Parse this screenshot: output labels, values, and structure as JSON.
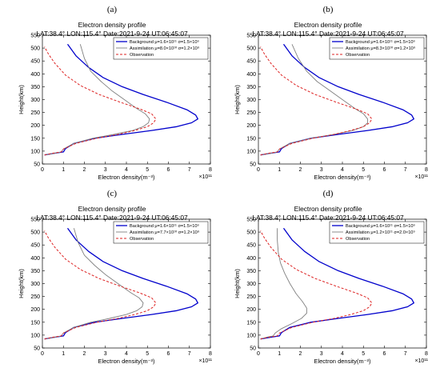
{
  "chart_data": [
    {
      "panel": "(a)",
      "type": "line",
      "title": "Electron density profile",
      "subtitle": "LAT:38.4° LON:115.4° Date:2021-9-24 UT:06:45:07",
      "xlabel": "Electron density(m⁻³)",
      "ylabel": "Height(km)",
      "xscale_note": "×10¹¹",
      "xlim": [
        0,
        8
      ],
      "ylim": [
        50,
        550
      ],
      "xticks": [
        "0",
        "1",
        "2",
        "3",
        "4",
        "5",
        "6",
        "7",
        "8"
      ],
      "yticks": [
        "50",
        "100",
        "150",
        "200",
        "250",
        "300",
        "350",
        "400",
        "450",
        "500",
        "550"
      ],
      "legend_position": "top-right",
      "series": [
        {
          "name": "Background μ=1.6×10¹¹ σ=1.5×10⁹",
          "color": "#0000cc",
          "style": "solid",
          "width": 1.3,
          "x": [
            0.1,
            0.6,
            1.0,
            1.1,
            1.5,
            2.5,
            3.8,
            5.2,
            6.4,
            7.1,
            7.4,
            7.3,
            6.9,
            5.9,
            4.8,
            3.8,
            2.9,
            2.2,
            1.6,
            1.2
          ],
          "y": [
            85,
            92,
            97,
            110,
            130,
            150,
            165,
            180,
            195,
            210,
            225,
            240,
            260,
            290,
            320,
            350,
            385,
            425,
            470,
            515
          ]
        },
        {
          "name": "Assimilation μ=8.0×10¹⁰ σ=1.2×10⁹",
          "color": "#808080",
          "style": "solid",
          "width": 0.9,
          "x": [
            0.1,
            0.6,
            0.9,
            1.0,
            1.5,
            2.4,
            3.4,
            4.3,
            4.8,
            5.05,
            5.1,
            4.9,
            4.5,
            3.9,
            3.3,
            2.8,
            2.3,
            2.0,
            1.8
          ],
          "y": [
            85,
            92,
            97,
            108,
            130,
            150,
            165,
            180,
            195,
            210,
            225,
            245,
            265,
            300,
            335,
            370,
            410,
            460,
            515
          ]
        },
        {
          "name": "Observation",
          "color": "#dd2222",
          "style": "dashed",
          "width": 1.0,
          "x": [
            0.1,
            0.5,
            0.9,
            1.0,
            1.6,
            2.6,
            3.6,
            4.4,
            5.0,
            5.3,
            5.4,
            5.2,
            4.6,
            3.7,
            2.7,
            1.8,
            1.1,
            0.6,
            0.3,
            0.1
          ],
          "y": [
            85,
            92,
            97,
            108,
            130,
            150,
            165,
            180,
            195,
            210,
            225,
            245,
            265,
            290,
            320,
            355,
            395,
            440,
            475,
            505
          ]
        }
      ]
    },
    {
      "panel": "(b)",
      "type": "line",
      "title": "Electron density profile",
      "subtitle": "LAT:38.4° LON:115.4° Date:2021-9-24 UT:06:45:07",
      "xlabel": "Electron density(m⁻³)",
      "ylabel": "Height(km)",
      "xscale_note": "×10¹¹",
      "xlim": [
        0,
        8
      ],
      "ylim": [
        50,
        550
      ],
      "xticks": [
        "0",
        "1",
        "2",
        "3",
        "4",
        "5",
        "6",
        "7",
        "8"
      ],
      "yticks": [
        "50",
        "100",
        "150",
        "200",
        "250",
        "300",
        "350",
        "400",
        "450",
        "500",
        "550"
      ],
      "legend_position": "top-right",
      "series": [
        {
          "name": "Background μ=1.6×10¹¹ σ=1.5×10⁹",
          "color": "#0000cc",
          "style": "solid",
          "width": 1.3,
          "x": [
            0.1,
            0.6,
            1.0,
            1.1,
            1.5,
            2.5,
            3.8,
            5.2,
            6.4,
            7.1,
            7.4,
            7.3,
            6.9,
            5.9,
            4.8,
            3.8,
            2.9,
            2.2,
            1.6,
            1.2
          ],
          "y": [
            85,
            92,
            97,
            110,
            130,
            150,
            165,
            180,
            195,
            210,
            225,
            240,
            260,
            290,
            320,
            350,
            385,
            425,
            470,
            515
          ]
        },
        {
          "name": "Assimilation μ=8.3×10¹⁰ σ=1.2×10⁹",
          "color": "#808080",
          "style": "solid",
          "width": 0.9,
          "x": [
            0.1,
            0.6,
            0.9,
            1.0,
            1.5,
            2.5,
            3.6,
            4.5,
            5.0,
            5.2,
            5.2,
            5.0,
            4.6,
            4.0,
            3.4,
            2.8,
            2.3,
            1.9,
            1.6
          ],
          "y": [
            85,
            92,
            97,
            108,
            130,
            150,
            165,
            180,
            195,
            210,
            225,
            245,
            265,
            300,
            335,
            370,
            410,
            460,
            515
          ]
        },
        {
          "name": "Observation",
          "color": "#dd2222",
          "style": "dashed",
          "width": 1.0,
          "x": [
            0.1,
            0.5,
            0.9,
            1.0,
            1.6,
            2.6,
            3.6,
            4.4,
            5.0,
            5.3,
            5.4,
            5.2,
            4.6,
            3.7,
            2.7,
            1.8,
            1.1,
            0.6,
            0.3,
            0.1
          ],
          "y": [
            85,
            92,
            97,
            108,
            130,
            150,
            165,
            180,
            195,
            210,
            225,
            245,
            265,
            290,
            320,
            355,
            395,
            440,
            475,
            505
          ]
        }
      ]
    },
    {
      "panel": "(c)",
      "type": "line",
      "title": "Electron density profile",
      "subtitle": "LAT:38.4° LON:115.4° Date:2021-9-24 UT:06:45:07",
      "xlabel": "Electron density(m⁻³)",
      "ylabel": "Height(km)",
      "xscale_note": "×10¹¹",
      "xlim": [
        0,
        8
      ],
      "ylim": [
        50,
        550
      ],
      "xticks": [
        "0",
        "1",
        "2",
        "3",
        "4",
        "5",
        "6",
        "7",
        "8"
      ],
      "yticks": [
        "50",
        "100",
        "150",
        "200",
        "250",
        "300",
        "350",
        "400",
        "450",
        "500",
        "550"
      ],
      "legend_position": "top-right",
      "series": [
        {
          "name": "Background μ=1.6×10¹¹ σ=1.5×10⁹",
          "color": "#0000cc",
          "style": "solid",
          "width": 1.3,
          "x": [
            0.1,
            0.6,
            1.0,
            1.1,
            1.5,
            2.5,
            3.8,
            5.2,
            6.4,
            7.1,
            7.4,
            7.3,
            6.9,
            5.9,
            4.8,
            3.8,
            2.9,
            2.2,
            1.6,
            1.2
          ],
          "y": [
            85,
            92,
            97,
            110,
            130,
            150,
            165,
            180,
            195,
            210,
            225,
            240,
            260,
            290,
            320,
            350,
            385,
            425,
            470,
            515
          ]
        },
        {
          "name": "Assimilation μ=7.7×10¹⁰ σ=1.2×10⁹",
          "color": "#808080",
          "style": "solid",
          "width": 0.9,
          "x": [
            0.1,
            0.6,
            0.9,
            1.0,
            1.5,
            2.3,
            3.2,
            4.0,
            4.5,
            4.75,
            4.8,
            4.6,
            4.2,
            3.6,
            3.0,
            2.5,
            2.0,
            1.7,
            1.5
          ],
          "y": [
            85,
            92,
            97,
            108,
            130,
            150,
            165,
            180,
            195,
            210,
            225,
            245,
            265,
            300,
            335,
            370,
            410,
            460,
            515
          ]
        },
        {
          "name": "Observation",
          "color": "#dd2222",
          "style": "dashed",
          "width": 1.0,
          "x": [
            0.1,
            0.5,
            0.9,
            1.0,
            1.6,
            2.6,
            3.6,
            4.4,
            5.0,
            5.3,
            5.4,
            5.2,
            4.6,
            3.7,
            2.7,
            1.8,
            1.1,
            0.6,
            0.3,
            0.1
          ],
          "y": [
            85,
            92,
            97,
            108,
            130,
            150,
            165,
            180,
            195,
            210,
            225,
            245,
            265,
            290,
            320,
            355,
            395,
            440,
            475,
            505
          ]
        }
      ]
    },
    {
      "panel": "(d)",
      "type": "line",
      "title": "Electron density profile",
      "subtitle": "LAT:38.4° LON:115.4° Date:2021-9-24 UT:06:45:07",
      "xlabel": "Electron density(m⁻³)",
      "ylabel": "Height(km)",
      "xscale_note": "×10¹¹",
      "xlim": [
        0,
        8
      ],
      "ylim": [
        50,
        550
      ],
      "xticks": [
        "0",
        "1",
        "2",
        "3",
        "4",
        "5",
        "6",
        "7",
        "8"
      ],
      "yticks": [
        "50",
        "100",
        "150",
        "200",
        "250",
        "300",
        "350",
        "400",
        "450",
        "500",
        "550"
      ],
      "legend_position": "top-right",
      "series": [
        {
          "name": "Background μ=1.6×10¹¹ σ=1.5×10⁹",
          "color": "#0000cc",
          "style": "solid",
          "width": 1.3,
          "x": [
            0.1,
            0.6,
            1.0,
            1.1,
            1.5,
            2.5,
            3.8,
            5.2,
            6.4,
            7.1,
            7.4,
            7.3,
            6.9,
            5.9,
            4.8,
            3.8,
            2.9,
            2.2,
            1.6,
            1.2
          ],
          "y": [
            85,
            92,
            97,
            110,
            130,
            150,
            165,
            180,
            195,
            210,
            225,
            240,
            260,
            290,
            320,
            350,
            385,
            425,
            470,
            515
          ]
        },
        {
          "name": "Assimilation μ=1.2×10¹¹ σ=2.0×10⁹",
          "color": "#808080",
          "style": "solid",
          "width": 0.9,
          "x": [
            0.1,
            0.4,
            0.7,
            0.8,
            1.1,
            1.6,
            2.05,
            2.3,
            2.3,
            2.1,
            1.8,
            1.5,
            1.25,
            1.05,
            0.95,
            0.9,
            0.9
          ],
          "y": [
            85,
            92,
            97,
            108,
            125,
            145,
            165,
            185,
            205,
            230,
            260,
            300,
            340,
            380,
            420,
            470,
            515
          ]
        },
        {
          "name": "Observation",
          "color": "#dd2222",
          "style": "dashed",
          "width": 1.0,
          "x": [
            0.1,
            0.5,
            0.9,
            1.0,
            1.6,
            2.6,
            3.6,
            4.4,
            5.0,
            5.3,
            5.4,
            5.2,
            4.6,
            3.7,
            2.7,
            1.8,
            1.1,
            0.6,
            0.3,
            0.1
          ],
          "y": [
            85,
            92,
            97,
            108,
            130,
            150,
            165,
            180,
            195,
            210,
            225,
            245,
            265,
            290,
            320,
            355,
            395,
            440,
            475,
            505
          ]
        }
      ]
    }
  ]
}
